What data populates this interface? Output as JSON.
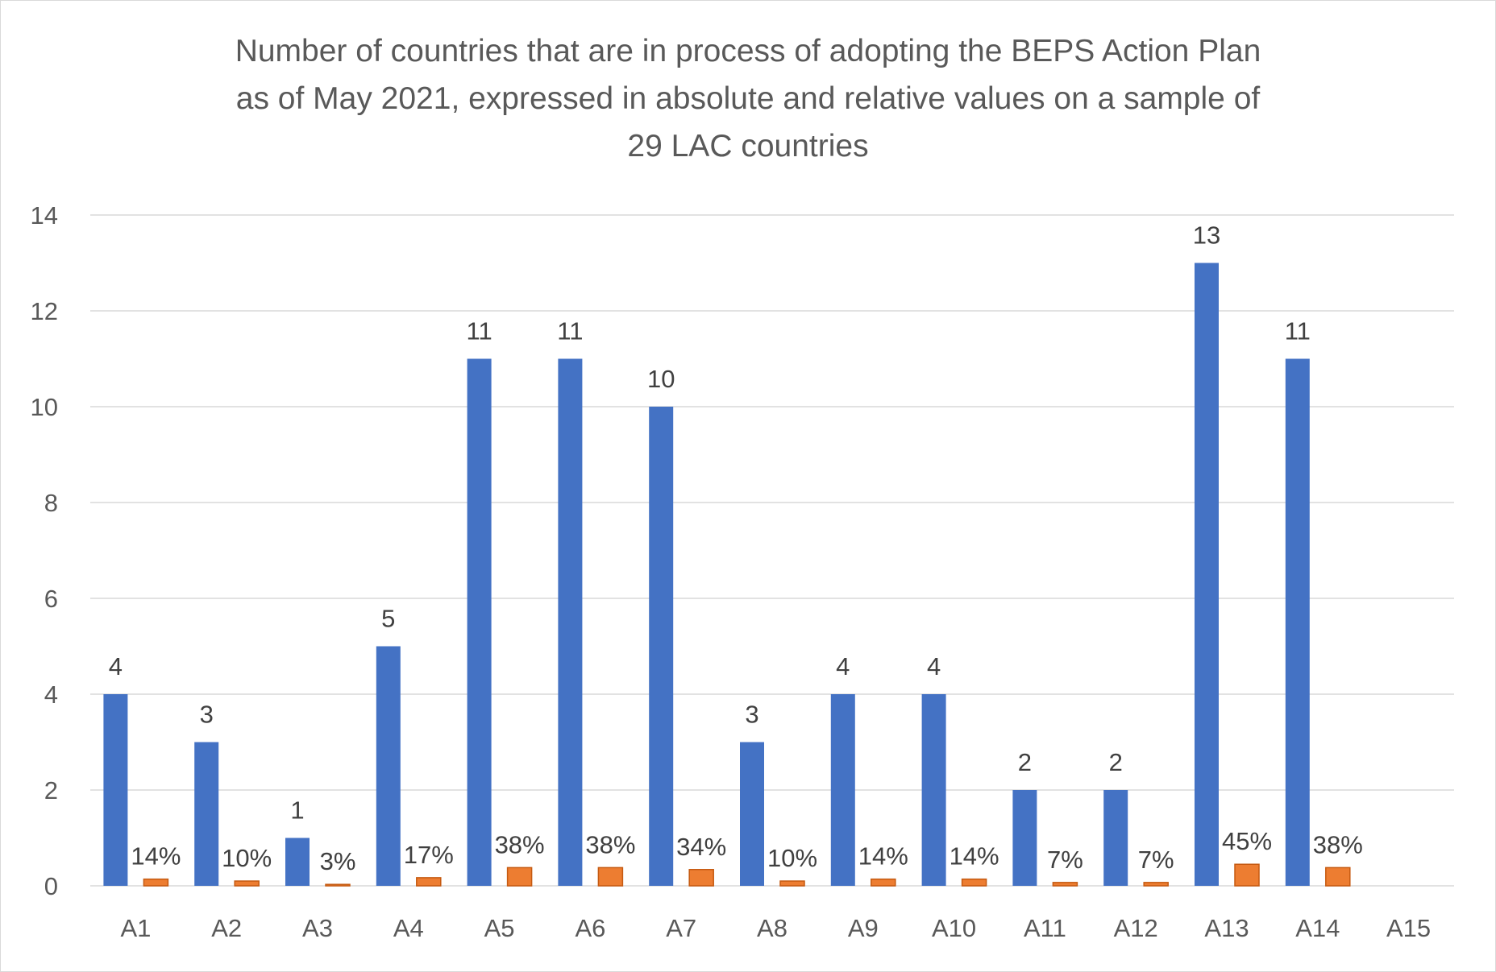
{
  "chart_data": {
    "type": "bar",
    "title": "Number of countries that are in process of adopting the BEPS Action Plan as of May 2021, expressed in absolute and relative values on a sample of 29 LAC countries",
    "title_lines": [
      "Number of countries that are in process of adopting the BEPS Action Plan",
      "as of May 2021, expressed in absolute and relative values on a sample of",
      "29 LAC countries"
    ],
    "categories": [
      "A1",
      "A2",
      "A3",
      "A4",
      "A5",
      "A6",
      "A7",
      "A8",
      "A9",
      "A10",
      "A11",
      "A12",
      "A13",
      "A14",
      "A15"
    ],
    "series": [
      {
        "values": [
          4,
          3,
          1,
          5,
          11,
          11,
          10,
          3,
          4,
          4,
          2,
          2,
          13,
          11,
          null
        ],
        "labels": [
          "4",
          "3",
          "1",
          "5",
          "11",
          "11",
          "10",
          "3",
          "4",
          "4",
          "2",
          "2",
          "13",
          "11",
          ""
        ],
        "color": "#4472c4"
      },
      {
        "values": [
          0.14,
          0.1,
          0.03,
          0.17,
          0.38,
          0.38,
          0.34,
          0.1,
          0.14,
          0.14,
          0.07,
          0.07,
          0.45,
          0.38,
          null
        ],
        "labels": [
          "14%",
          "10%",
          "3%",
          "17%",
          "38%",
          "38%",
          "34%",
          "10%",
          "14%",
          "14%",
          "7%",
          "7%",
          "45%",
          "38%",
          ""
        ],
        "color": "#ed7d31",
        "edge_color": "#c55a11"
      }
    ],
    "yticks": [
      "0",
      "2",
      "4",
      "6",
      "8",
      "10",
      "12",
      "14"
    ],
    "ylim": [
      0,
      14
    ],
    "xlabel": "",
    "ylabel": "",
    "grid": true,
    "legend": "none",
    "gridline_color": "#d9d9d9"
  }
}
